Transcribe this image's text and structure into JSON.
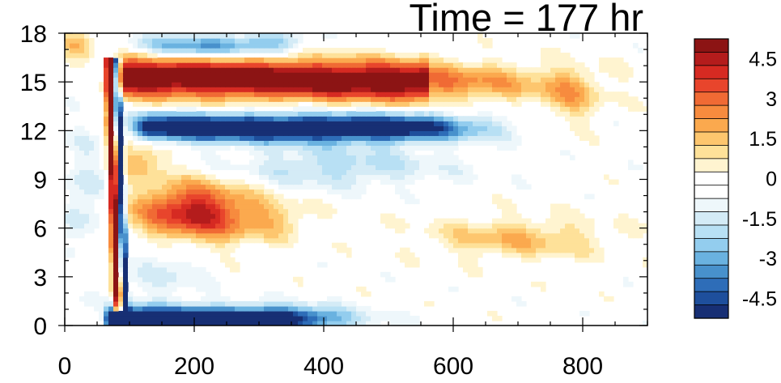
{
  "chart_data": {
    "type": "heatmap",
    "title": "Time = 177 hr",
    "xlabel": "",
    "ylabel": "",
    "xlim": [
      0,
      900
    ],
    "ylim": [
      0,
      18
    ],
    "x_major_ticks": [
      0,
      200,
      400,
      600,
      800
    ],
    "x_tick_labels": [
      "0",
      "200",
      "400",
      "600",
      "800"
    ],
    "y_major_ticks": [
      0,
      3,
      6,
      9,
      12,
      15,
      18
    ],
    "y_tick_labels": [
      "0",
      "3",
      "6",
      "9",
      "12",
      "15",
      "18"
    ],
    "grid": false,
    "colorbar": {
      "placement": "right",
      "levels": [
        -5.5,
        -5,
        -4.5,
        -4,
        -3.5,
        -3,
        -2.5,
        -2,
        -1.5,
        -1,
        -0.5,
        0,
        0.5,
        1,
        1.5,
        2,
        2.5,
        3,
        3.5,
        4,
        4.5,
        5,
        5.5
      ],
      "label_values": [
        4.5,
        3,
        1.5,
        0,
        -1.5,
        -3,
        -4.5
      ],
      "labels": [
        "4.5",
        "3",
        "1.5",
        "0",
        "-1.5",
        "-3",
        "-4.5"
      ],
      "colors_top_to_bottom": [
        "#8c1414",
        "#b41c1c",
        "#d62a22",
        "#e8452c",
        "#f06a34",
        "#f78b3e",
        "#fba94e",
        "#fdc66e",
        "#fee199",
        "#fff4d0",
        "#ffffff",
        "#ffffff",
        "#eef7fb",
        "#d4ebf6",
        "#b8e0f4",
        "#93cdee",
        "#6ab2e0",
        "#4891cc",
        "#2e6db8",
        "#1e4f9c",
        "#172f74"
      ]
    },
    "features": [
      {
        "desc": "positive band",
        "x": [
          90,
          780
        ],
        "y": 15.2,
        "max_value": 5.5
      },
      {
        "desc": "negative band",
        "x": [
          140,
          520
        ],
        "y": 12.2,
        "min_value": -5.5
      },
      {
        "desc": "positive blob",
        "x": [
          100,
          320
        ],
        "y": 7.0,
        "max_value": 4.5
      },
      {
        "desc": "negative band near surface",
        "x": [
          70,
          420
        ],
        "y": 0.5,
        "min_value": -5.5
      },
      {
        "desc": "tilted front positive",
        "x": [
          65,
          85
        ],
        "y": [
          1,
          16
        ],
        "max_value": 5.5
      },
      {
        "desc": "tilted front negative",
        "x": [
          70,
          95
        ],
        "y": [
          1,
          16
        ],
        "min_value": -5.5
      },
      {
        "desc": "weak positive",
        "x": [
          580,
          850
        ],
        "y": 5.5,
        "max_value": 1.5
      },
      {
        "desc": "weak negative",
        "x": [
          120,
          280
        ],
        "y": 17.2,
        "min_value": -3
      }
    ]
  }
}
